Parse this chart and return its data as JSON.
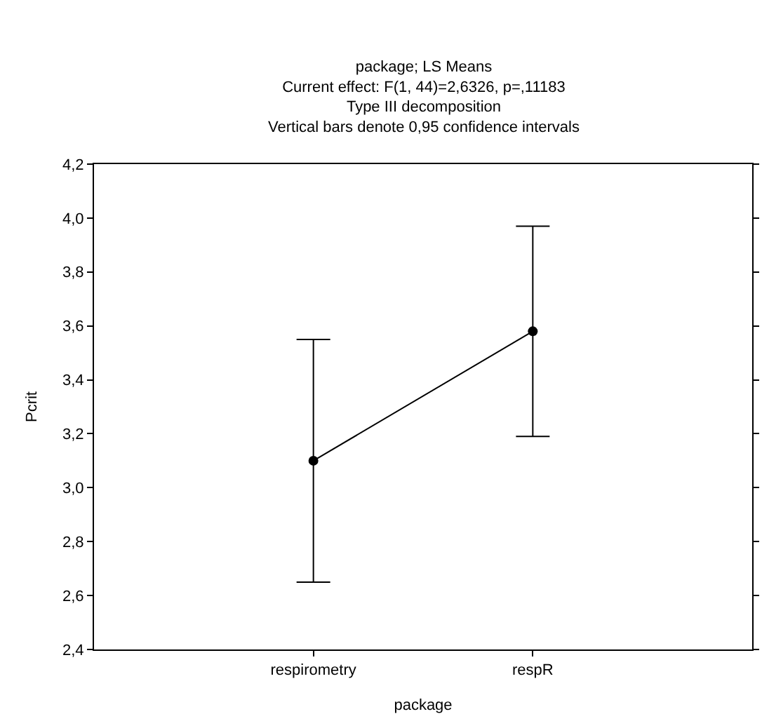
{
  "chart_data": {
    "type": "line",
    "title": "package; LS Means",
    "subtitle": "Current effect: F(1, 44)=2,6326, p=,11183\nType III decomposition\nVertical bars denote 0,95 confidence intervals",
    "xlabel": "package",
    "ylabel": "Pcrit",
    "categories": [
      "respirometry",
      "respR"
    ],
    "series": [
      {
        "color": "#000000",
        "values": [
          3.1,
          3.58
        ],
        "errors": [
          0.45,
          0.39
        ]
      }
    ],
    "ylim": [
      2.4,
      4.2
    ],
    "yticks": [
      {
        "value": 2.4,
        "label": "2,4"
      },
      {
        "value": 2.6,
        "label": "2,6"
      },
      {
        "value": 2.8,
        "label": "2,8"
      },
      {
        "value": 3.0,
        "label": "3,0"
      },
      {
        "value": 3.2,
        "label": "3,2"
      },
      {
        "value": 3.4,
        "label": "3,4"
      },
      {
        "value": 3.6,
        "label": "3,6"
      },
      {
        "value": 3.8,
        "label": "3,8"
      },
      {
        "value": 4.0,
        "label": "4,0"
      },
      {
        "value": 4.2,
        "label": "4,2"
      }
    ],
    "marker": "circle",
    "line_style": "solid"
  }
}
